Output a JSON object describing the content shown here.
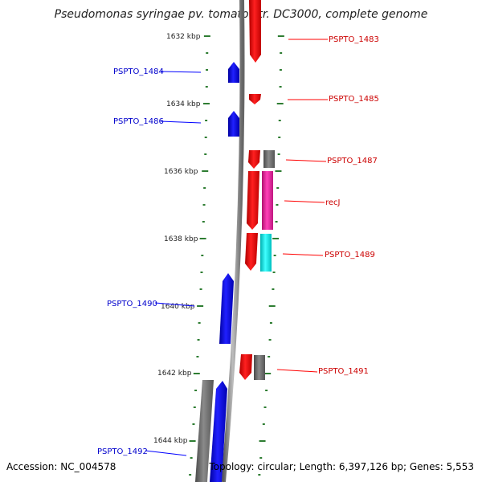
{
  "title": "Pseudomonas syringae pv. tomato str. DC3000, complete genome",
  "footer": {
    "accession": "Accession: NC_004578",
    "topology": "Topology: circular; Length: 6,397,126 bp; Genes: 5,553"
  },
  "colors": {
    "forward": "#ff0000",
    "reverse": "#0000ff",
    "gray": "#707070",
    "magenta": "#e0209a",
    "cyan": "#00e5e5",
    "backbone": "#888888",
    "tick": "#2e7d32"
  },
  "kbp_labels": [
    "1632 kbp",
    "1634 kbp",
    "1636 kbp",
    "1638 kbp",
    "1640 kbp",
    "1642 kbp",
    "1644 kbp"
  ],
  "gene_labels": [
    {
      "text": "PSPTO_1483",
      "strand": "forward"
    },
    {
      "text": "PSPTO_1484",
      "strand": "reverse"
    },
    {
      "text": "PSPTO_1485",
      "strand": "forward"
    },
    {
      "text": "PSPTO_1486",
      "strand": "reverse"
    },
    {
      "text": "PSPTO_1487",
      "strand": "forward"
    },
    {
      "text": "recJ",
      "strand": "forward"
    },
    {
      "text": "PSPTO_1489",
      "strand": "forward"
    },
    {
      "text": "PSPTO_1490",
      "strand": "reverse"
    },
    {
      "text": "PSPTO_1491",
      "strand": "forward"
    },
    {
      "text": "PSPTO_1492",
      "strand": "reverse"
    }
  ]
}
